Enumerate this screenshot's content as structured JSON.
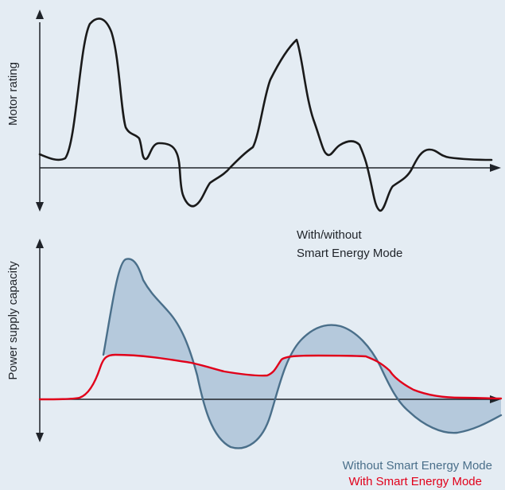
{
  "top_chart": {
    "ylabel": "Motor rating"
  },
  "middle_caption": {
    "line1": "With/without",
    "line2": "Smart Energy Mode"
  },
  "bottom_chart": {
    "ylabel": "Power supply capacity"
  },
  "legend": {
    "without_label": "Without Smart Energy Mode",
    "with_label": "With Smart Energy Mode"
  },
  "colors": {
    "background": "#e4ecf3",
    "axis": "#1f2329",
    "motor_curve": "#1a1a1a",
    "without_curve": "#4a6f8a",
    "without_fill": "#b5c9dc",
    "with_curve": "#e1001a"
  }
}
